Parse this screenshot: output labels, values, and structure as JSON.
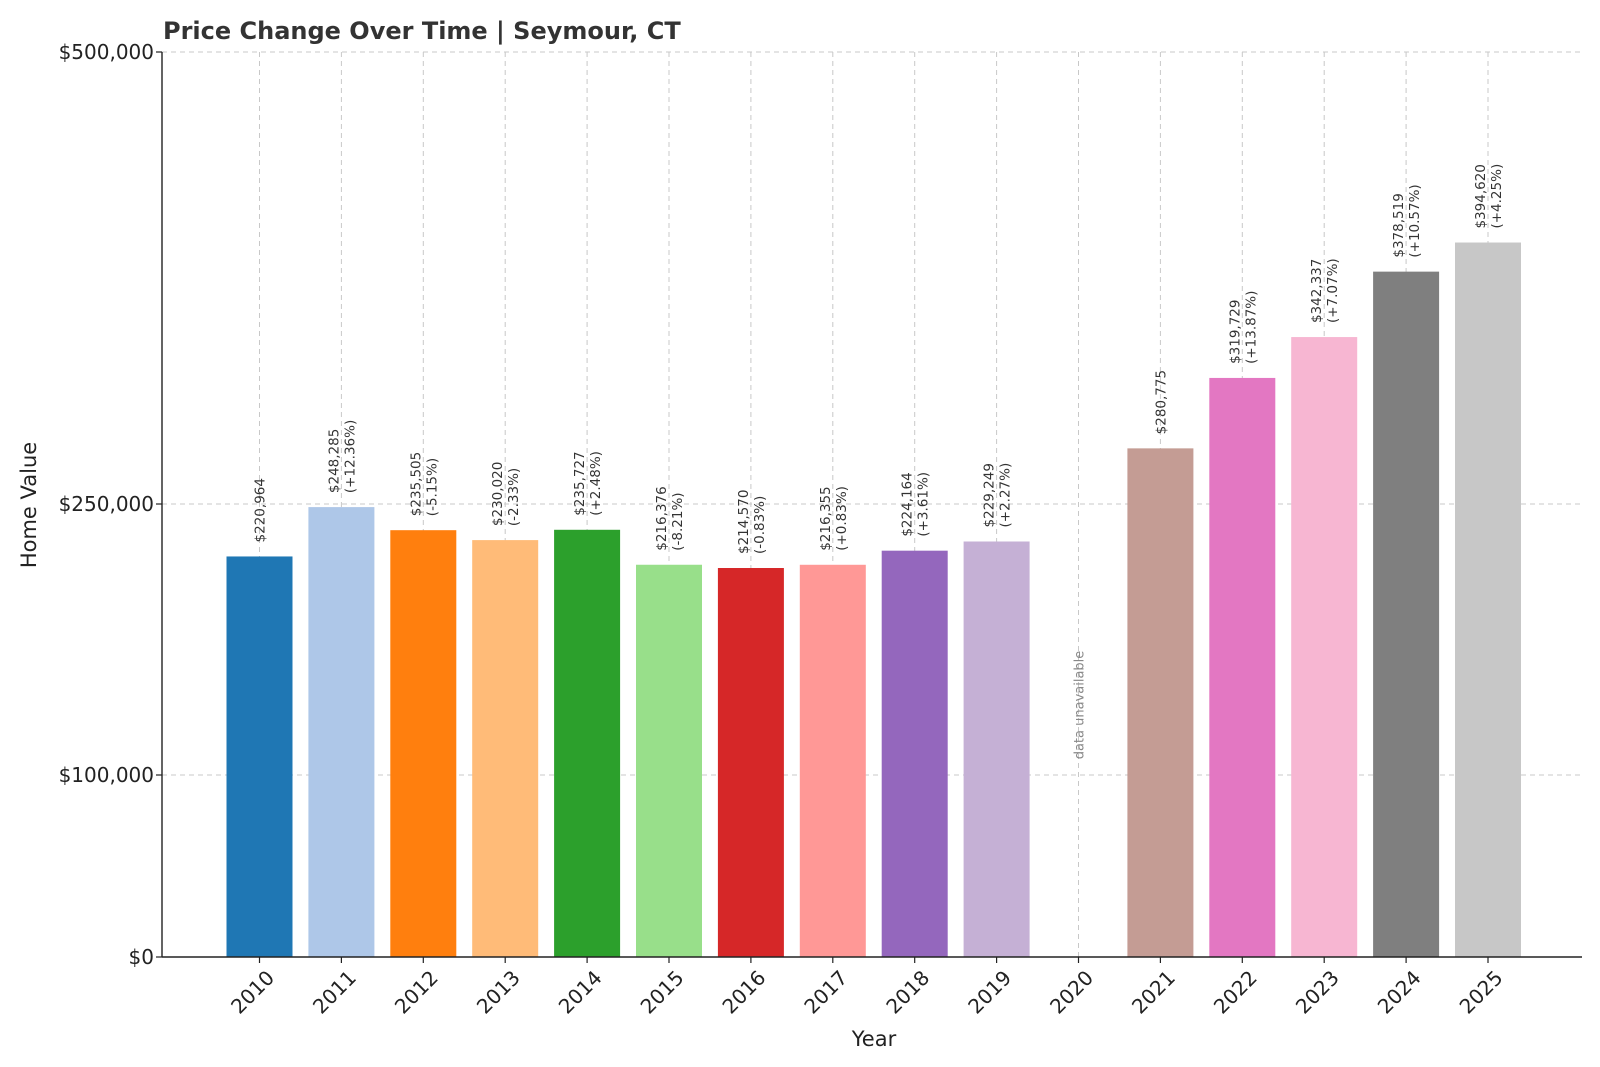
{
  "chart_data": {
    "type": "bar",
    "title": "Price Change Over Time | Seymour, CT",
    "xlabel": "Year",
    "ylabel": "Home Value",
    "y_ticks": [
      {
        "value": 0,
        "label": "$0"
      },
      {
        "value": 100000,
        "label": "$100,000"
      },
      {
        "value": 250000,
        "label": "$250,000"
      },
      {
        "value": 500000,
        "label": "$500,000"
      }
    ],
    "ylim": [
      0,
      500000
    ],
    "grid": true,
    "unavailable_text": "data unavailable",
    "categories": [
      "2010",
      "2011",
      "2012",
      "2013",
      "2014",
      "2015",
      "2016",
      "2017",
      "2018",
      "2019",
      "2020",
      "2021",
      "2022",
      "2023",
      "2024",
      "2025"
    ],
    "values": [
      220964,
      248285,
      235505,
      230020,
      235727,
      216376,
      214570,
      216355,
      224164,
      229249,
      null,
      280775,
      319729,
      342337,
      378519,
      394620
    ],
    "value_labels": [
      "$220,964",
      "$248,285",
      "$235,505",
      "$230,020",
      "$235,727",
      "$216,376",
      "$214,570",
      "$216,355",
      "$224,164",
      "$229,249",
      "",
      "$280,775",
      "$319,729",
      "$342,337",
      "$378,519",
      "$394,620"
    ],
    "change_labels": [
      "",
      "(+12.36%)",
      "(-5.15%)",
      "(-2.33%)",
      "(+2.48%)",
      "(-8.21%)",
      "(-0.83%)",
      "(+0.83%)",
      "(+3.61%)",
      "(+2.27%)",
      "",
      "",
      "(+13.87%)",
      "(+7.07%)",
      "(+10.57%)",
      "(+4.25%)"
    ],
    "colors": [
      "#1f77b4",
      "#aec7e8",
      "#ff7f0e",
      "#ffbb78",
      "#2ca02c",
      "#98df8a",
      "#d62728",
      "#ff9896",
      "#9467bd",
      "#c5b0d5",
      "#8c564b",
      "#c49c94",
      "#e377c2",
      "#f7b6d2",
      "#7f7f7f",
      "#c7c7c7"
    ]
  }
}
